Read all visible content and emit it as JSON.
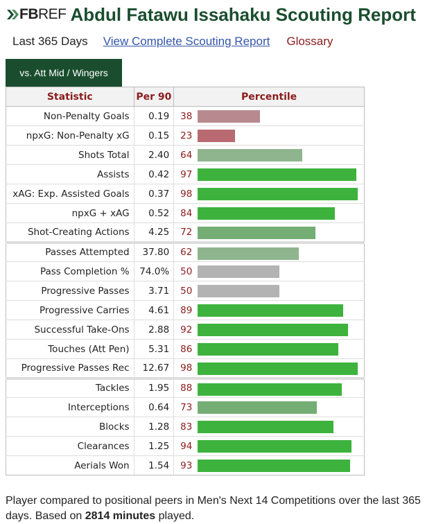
{
  "header": {
    "logo_fb": "FB",
    "logo_ref": "REF",
    "title": "Abdul Fatawu Issahaku Scouting Report"
  },
  "subnav": {
    "period": "Last 365 Days",
    "full_report_link": "View Complete Scouting Report",
    "glossary_link": "Glossary"
  },
  "tab": {
    "label": "vs. Att Mid / Wingers"
  },
  "colors": {
    "brand_green": "#1a4d2e",
    "header_red": "#8a1c1c",
    "link_blue": "#3355aa"
  },
  "table": {
    "headers": {
      "statistic": "Statistic",
      "per90": "Per 90",
      "percentile": "Percentile"
    },
    "rows": [
      {
        "stat": "Non-Penalty Goals",
        "per90": "0.19",
        "pct": "38",
        "group": 1
      },
      {
        "stat": "npxG: Non-Penalty xG",
        "per90": "0.15",
        "pct": "23",
        "group": 1
      },
      {
        "stat": "Shots Total",
        "per90": "2.40",
        "pct": "64",
        "group": 1
      },
      {
        "stat": "Assists",
        "per90": "0.42",
        "pct": "97",
        "group": 1
      },
      {
        "stat": "xAG: Exp. Assisted Goals",
        "per90": "0.37",
        "pct": "98",
        "group": 1
      },
      {
        "stat": "npxG + xAG",
        "per90": "0.52",
        "pct": "84",
        "group": 1
      },
      {
        "stat": "Shot-Creating Actions",
        "per90": "4.25",
        "pct": "72",
        "group": 1
      },
      {
        "stat": "Passes Attempted",
        "per90": "37.80",
        "pct": "62",
        "group": 2
      },
      {
        "stat": "Pass Completion %",
        "per90": "74.0%",
        "pct": "50",
        "group": 2
      },
      {
        "stat": "Progressive Passes",
        "per90": "3.71",
        "pct": "50",
        "group": 2
      },
      {
        "stat": "Progressive Carries",
        "per90": "4.61",
        "pct": "89",
        "group": 2
      },
      {
        "stat": "Successful Take-Ons",
        "per90": "2.88",
        "pct": "92",
        "group": 2
      },
      {
        "stat": "Touches (Att Pen)",
        "per90": "5.31",
        "pct": "86",
        "group": 2
      },
      {
        "stat": "Progressive Passes Rec",
        "per90": "12.67",
        "pct": "98",
        "group": 2
      },
      {
        "stat": "Tackles",
        "per90": "1.95",
        "pct": "88",
        "group": 3
      },
      {
        "stat": "Interceptions",
        "per90": "0.64",
        "pct": "73",
        "group": 3
      },
      {
        "stat": "Blocks",
        "per90": "1.28",
        "pct": "83",
        "group": 3
      },
      {
        "stat": "Clearances",
        "per90": "1.25",
        "pct": "94",
        "group": 3
      },
      {
        "stat": "Aerials Won",
        "per90": "1.54",
        "pct": "93",
        "group": 3
      }
    ]
  },
  "footnote": {
    "text_before": "Player compared to positional peers in Men's Next 14 Competitions over the last 365 days. Based on ",
    "minutes": "2814 minutes",
    "text_after": " played."
  }
}
